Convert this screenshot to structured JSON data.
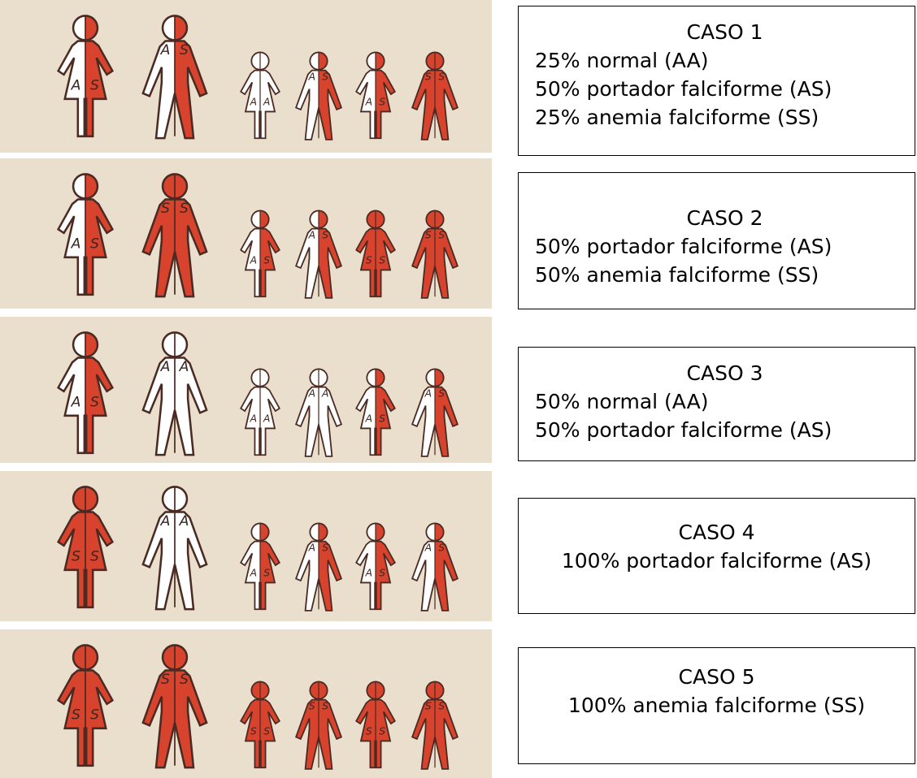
{
  "allele_colors": {
    "A": "#ffffff",
    "S": "#d8432e"
  },
  "rows": [
    {
      "figures": [
        {
          "alleles": [
            "A",
            "S"
          ]
        },
        {
          "alleles": [
            "A",
            "S"
          ]
        },
        {
          "alleles": [
            "A",
            "A"
          ]
        },
        {
          "alleles": [
            "A",
            "S"
          ]
        },
        {
          "alleles": [
            "A",
            "S"
          ]
        },
        {
          "alleles": [
            "S",
            "S"
          ]
        }
      ],
      "box": {
        "title": "CASO 1",
        "lines": [
          "25% normal (AA)",
          "50% portador falciforme (AS)",
          "25% anemia falciforme (SS)"
        ]
      }
    },
    {
      "figures": [
        {
          "alleles": [
            "A",
            "S"
          ]
        },
        {
          "alleles": [
            "S",
            "S"
          ]
        },
        {
          "alleles": [
            "A",
            "S"
          ]
        },
        {
          "alleles": [
            "A",
            "S"
          ]
        },
        {
          "alleles": [
            "S",
            "S"
          ]
        },
        {
          "alleles": [
            "S",
            "S"
          ]
        }
      ],
      "box": {
        "title": "CASO 2",
        "lines": [
          "50% portador falciforme (AS)",
          "50% anemia falciforme (SS)"
        ]
      }
    },
    {
      "figures": [
        {
          "alleles": [
            "A",
            "S"
          ]
        },
        {
          "alleles": [
            "A",
            "A"
          ]
        },
        {
          "alleles": [
            "A",
            "A"
          ]
        },
        {
          "alleles": [
            "A",
            "A"
          ]
        },
        {
          "alleles": [
            "A",
            "S"
          ]
        },
        {
          "alleles": [
            "A",
            "S"
          ]
        }
      ],
      "box": {
        "title": "CASO 3",
        "lines": [
          "50% normal (AA)",
          "50% portador falciforme (AS)"
        ]
      }
    },
    {
      "figures": [
        {
          "alleles": [
            "S",
            "S"
          ]
        },
        {
          "alleles": [
            "A",
            "A"
          ]
        },
        {
          "alleles": [
            "A",
            "S"
          ]
        },
        {
          "alleles": [
            "A",
            "S"
          ]
        },
        {
          "alleles": [
            "A",
            "S"
          ]
        },
        {
          "alleles": [
            "A",
            "S"
          ]
        }
      ],
      "box": {
        "title": "CASO 4",
        "lines": [
          "100% portador falciforme (AS)"
        ]
      }
    },
    {
      "figures": [
        {
          "alleles": [
            "S",
            "S"
          ]
        },
        {
          "alleles": [
            "S",
            "S"
          ]
        },
        {
          "alleles": [
            "S",
            "S"
          ]
        },
        {
          "alleles": [
            "S",
            "S"
          ]
        },
        {
          "alleles": [
            "S",
            "S"
          ]
        },
        {
          "alleles": [
            "S",
            "S"
          ]
        }
      ],
      "box": {
        "title": "CASO 5",
        "lines": [
          "100% anemia falciforme (SS)"
        ]
      }
    }
  ]
}
